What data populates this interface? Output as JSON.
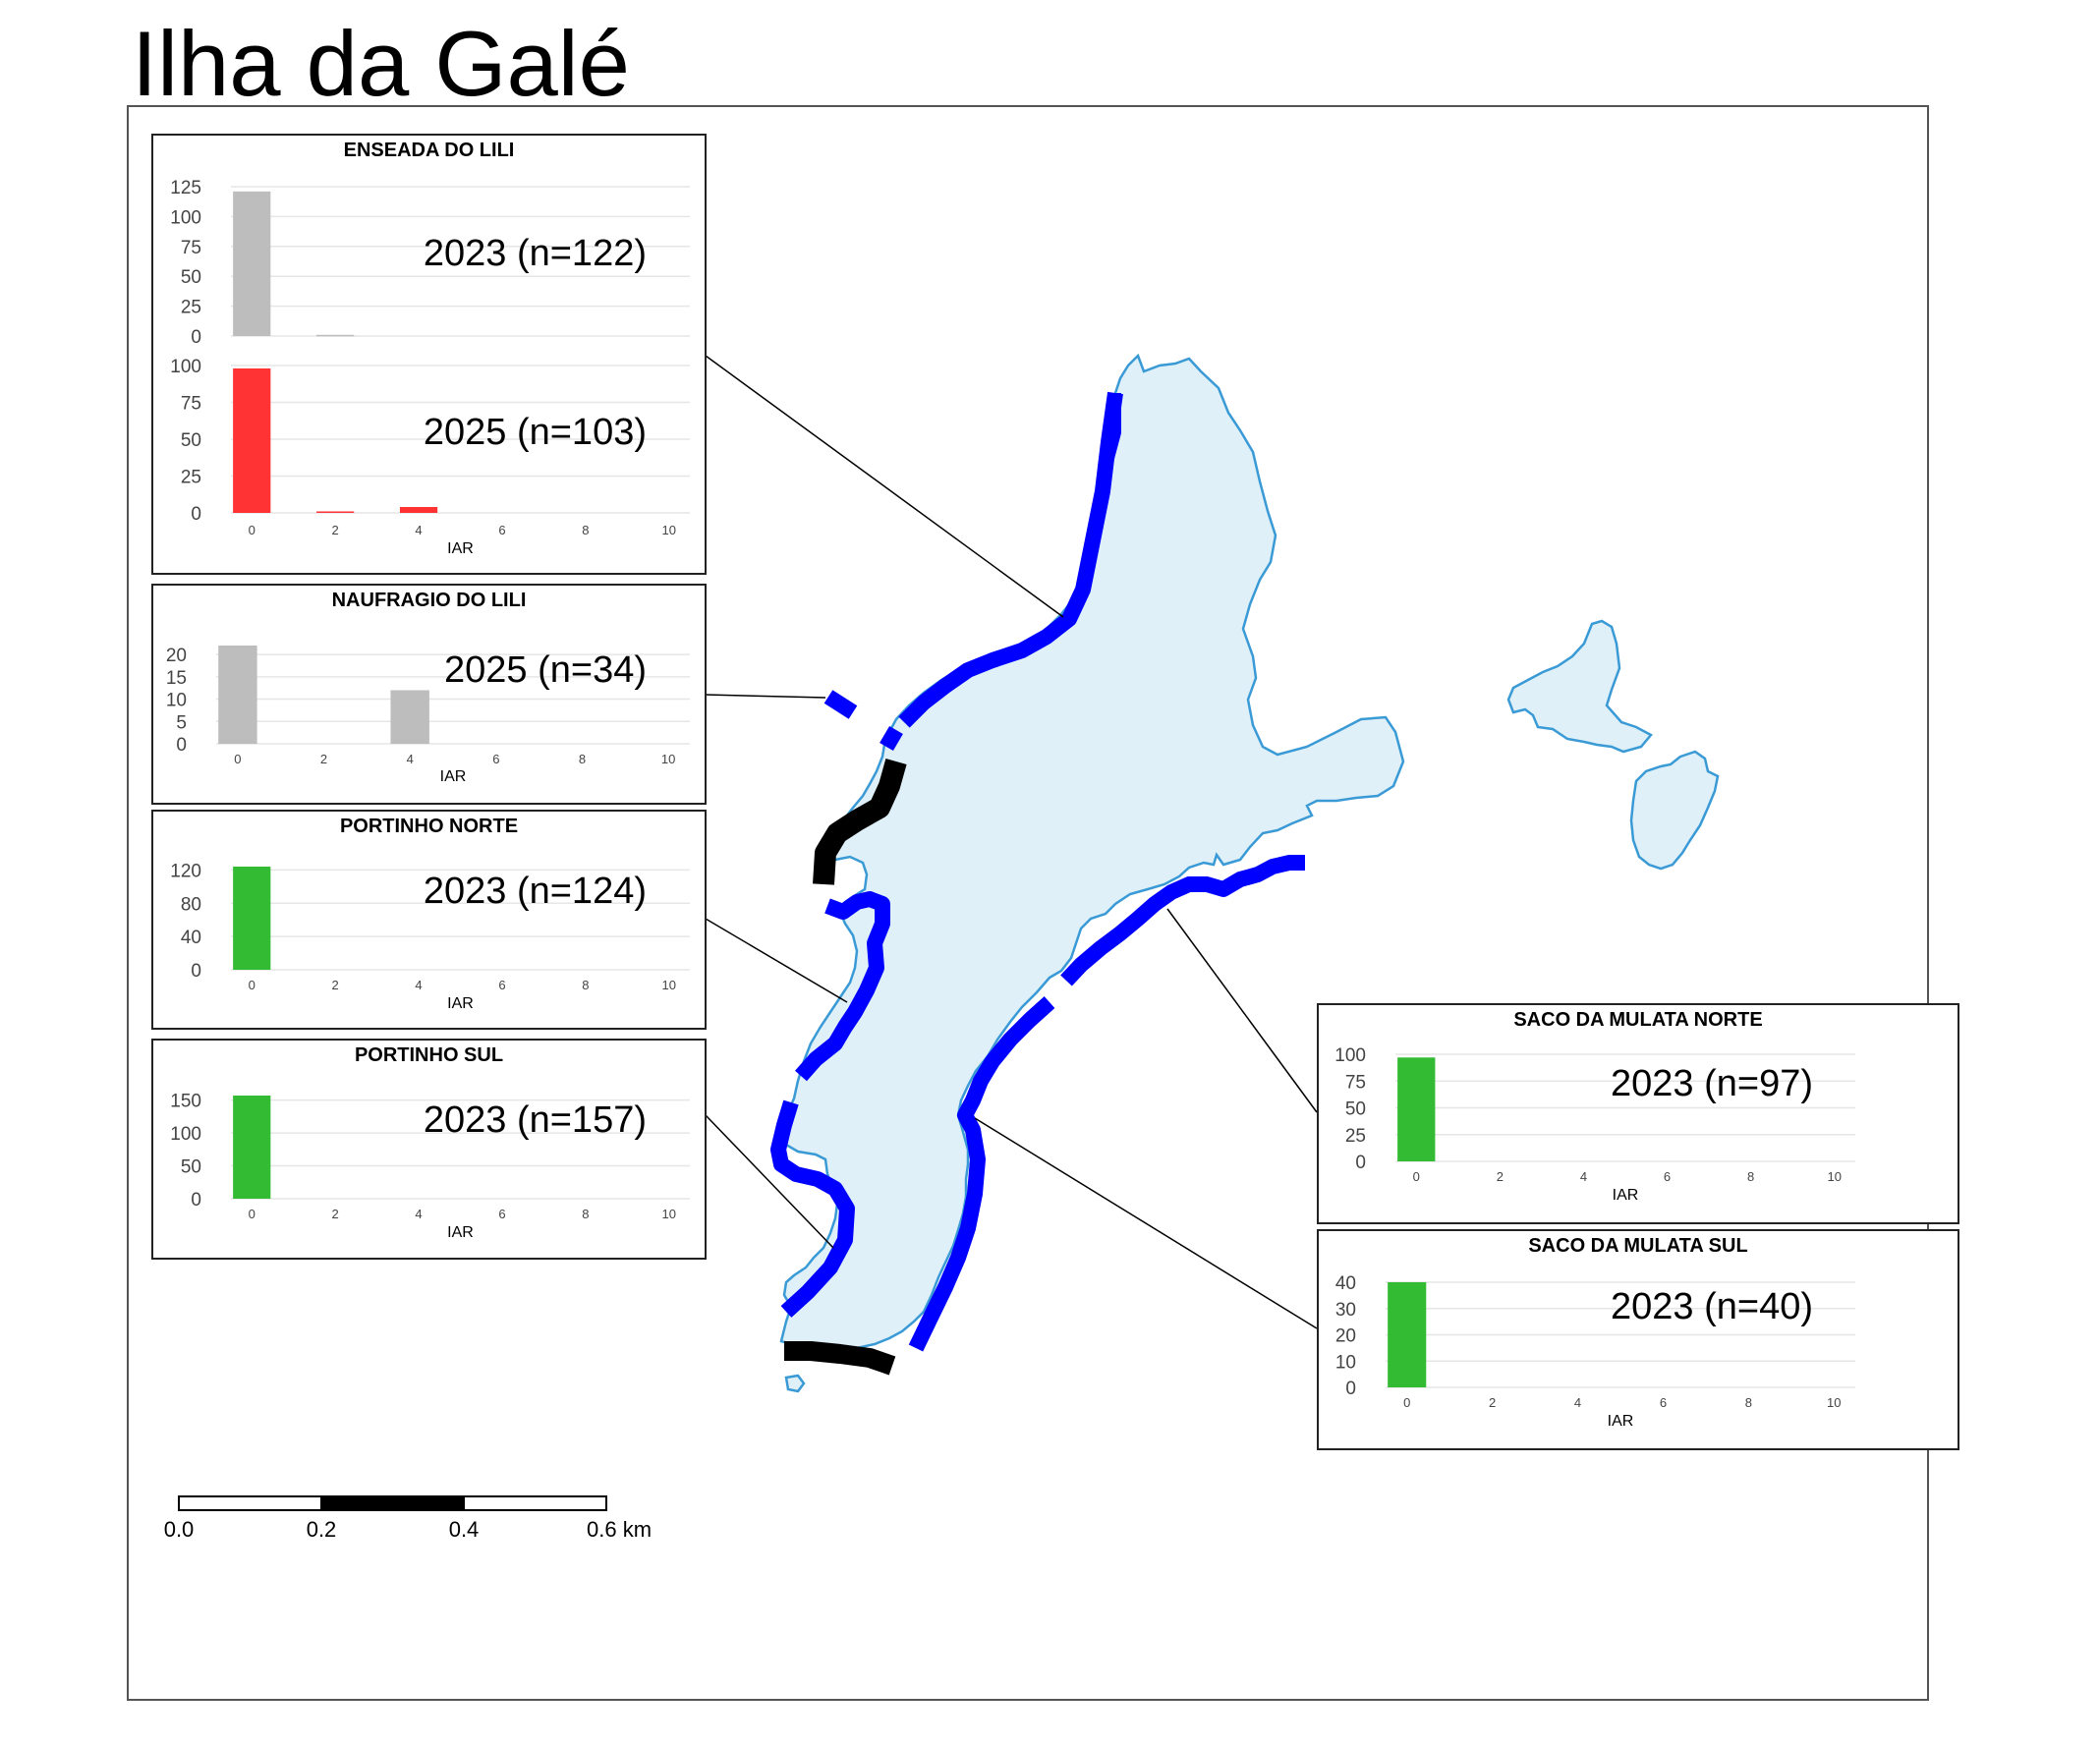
{
  "title": "Ilha da Galé",
  "colors": {
    "land_fill": "#dff0f8",
    "land_stroke": "#3a9ad6",
    "shore_line": "#0000ff",
    "shore_line_alt": "#000000",
    "bar_gray": "#bdbdbd",
    "bar_red": "#ff3333",
    "bar_green": "#33bb33"
  },
  "scale_bar": {
    "labels": [
      "0.0",
      "0.2",
      "0.4",
      "0.6 km"
    ]
  },
  "panels": [
    {
      "name": "ENSEADA DO LILI",
      "xlabel": "IAR",
      "xticks": [
        0,
        2,
        4,
        6,
        8,
        10
      ],
      "xlim": [
        -0.5,
        10.5
      ],
      "charts": [
        {
          "label": "2023 (n=122)",
          "color": "#bdbdbd",
          "ymax": 125,
          "yticks": [
            0,
            25,
            50,
            75,
            100,
            125
          ],
          "bars": [
            {
              "x": 0,
              "y": 121
            },
            {
              "x": 2,
              "y": 1
            }
          ]
        },
        {
          "label": "2025 (n=103)",
          "color": "#ff3333",
          "ymax": 100,
          "yticks": [
            0,
            25,
            50,
            75,
            100
          ],
          "bars": [
            {
              "x": 0,
              "y": 98
            },
            {
              "x": 2,
              "y": 1
            },
            {
              "x": 4,
              "y": 4
            }
          ]
        }
      ]
    },
    {
      "name": "NAUFRAGIO DO LILI",
      "xlabel": "IAR",
      "xticks": [
        0,
        2,
        4,
        6,
        8,
        10
      ],
      "xlim": [
        -0.5,
        10.5
      ],
      "charts": [
        {
          "label": "2025 (n=34)",
          "color": "#bdbdbd",
          "ymax": 22,
          "yticks": [
            0,
            5,
            10,
            15,
            20
          ],
          "bars": [
            {
              "x": 0,
              "y": 22
            },
            {
              "x": 4,
              "y": 12
            }
          ]
        }
      ]
    },
    {
      "name": "PORTINHO NORTE",
      "xlabel": "IAR",
      "xticks": [
        0,
        2,
        4,
        6,
        8,
        10
      ],
      "xlim": [
        -0.5,
        10.5
      ],
      "charts": [
        {
          "label": "2023 (n=124)",
          "color": "#33bb33",
          "ymax": 124,
          "yticks": [
            0,
            40,
            80,
            120
          ],
          "bars": [
            {
              "x": 0,
              "y": 124
            }
          ]
        }
      ]
    },
    {
      "name": "PORTINHO SUL",
      "xlabel": "IAR",
      "xticks": [
        0,
        2,
        4,
        6,
        8,
        10
      ],
      "xlim": [
        -0.5,
        10.5
      ],
      "charts": [
        {
          "label": "2023 (n=157)",
          "color": "#33bb33",
          "ymax": 157,
          "yticks": [
            0,
            50,
            100,
            150
          ],
          "bars": [
            {
              "x": 0,
              "y": 157
            }
          ]
        }
      ]
    },
    {
      "name": "SACO DA MULATA NORTE",
      "xlabel": "IAR",
      "xticks": [
        0,
        2,
        4,
        6,
        8,
        10
      ],
      "xlim": [
        -0.5,
        10.5
      ],
      "charts": [
        {
          "label": "2023 (n=97)",
          "color": "#33bb33",
          "ymax": 100,
          "yticks": [
            0,
            25,
            50,
            75,
            100
          ],
          "bars": [
            {
              "x": 0,
              "y": 97
            }
          ]
        }
      ]
    },
    {
      "name": "SACO DA MULATA SUL",
      "xlabel": "IAR",
      "xticks": [
        0,
        2,
        4,
        6,
        8,
        10
      ],
      "xlim": [
        -0.5,
        10.5
      ],
      "charts": [
        {
          "label": "2023 (n=40)",
          "color": "#33bb33",
          "ymax": 40,
          "yticks": [
            0,
            10,
            20,
            30,
            40
          ],
          "bars": [
            {
              "x": 0,
              "y": 40
            }
          ]
        }
      ]
    }
  ]
}
